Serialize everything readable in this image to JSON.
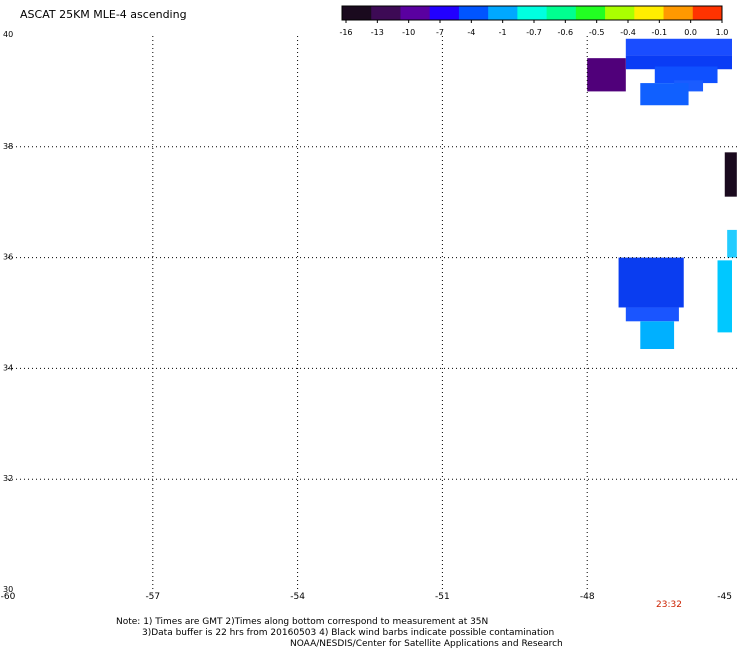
{
  "title": "ASCAT 25KM MLE-4 ascending",
  "colorbar": {
    "tick_labels": [
      "-16",
      "-13",
      "-10",
      "-7",
      "-4",
      "-1",
      "-0.7",
      "-0.6",
      "-0.5",
      "-0.4",
      "-0.1",
      "0.0",
      "1.0"
    ],
    "colors": [
      "#1a0a1e",
      "#3d0a55",
      "#5a00a0",
      "#2200ff",
      "#0055ff",
      "#00a8ff",
      "#00ffe0",
      "#00ff90",
      "#22ff22",
      "#aaff00",
      "#ffee00",
      "#ff9900",
      "#ff3300"
    ]
  },
  "map": {
    "lon_labels": [
      "-60",
      "-57",
      "-54",
      "-51",
      "-48",
      "-45"
    ],
    "lat_labels": [
      "40",
      "38",
      "36",
      "34",
      "32",
      "30"
    ],
    "lon_range": [
      -60,
      -45
    ],
    "lat_range": [
      30,
      40
    ],
    "grid": "dotted",
    "cells": [
      {
        "lon0": -47.2,
        "lon1": -45.0,
        "lat0": 39.65,
        "lat1": 39.95,
        "color": "#1a4dff"
      },
      {
        "lon0": -47.2,
        "lon1": -45.0,
        "lat0": 39.4,
        "lat1": 39.65,
        "color": "#0a3cf5"
      },
      {
        "lon0": -46.6,
        "lon1": -45.3,
        "lat0": 39.15,
        "lat1": 39.45,
        "color": "#0f50ff"
      },
      {
        "lon0": -46.2,
        "lon1": -45.6,
        "lat0": 39.0,
        "lat1": 39.2,
        "color": "#1a5cff"
      },
      {
        "lon0": -46.9,
        "lon1": -45.9,
        "lat0": 38.75,
        "lat1": 39.15,
        "color": "#1060ff"
      },
      {
        "lon0": -48.0,
        "lon1": -47.2,
        "lat0": 39.0,
        "lat1": 39.6,
        "color": "#50007a"
      },
      {
        "lon0": -45.15,
        "lon1": -44.9,
        "lat0": 37.1,
        "lat1": 37.9,
        "color": "#1a0a1e"
      },
      {
        "lon0": -47.35,
        "lon1": -46.0,
        "lat0": 35.1,
        "lat1": 36.0,
        "color": "#0a3df0"
      },
      {
        "lon0": -47.2,
        "lon1": -46.1,
        "lat0": 34.85,
        "lat1": 35.1,
        "color": "#1a55ff"
      },
      {
        "lon0": -46.9,
        "lon1": -46.2,
        "lat0": 34.35,
        "lat1": 34.85,
        "color": "#00b0ff"
      },
      {
        "lon0": -45.3,
        "lon1": -45.0,
        "lat0": 34.65,
        "lat1": 35.95,
        "color": "#00c8ff"
      },
      {
        "lon0": -45.1,
        "lon1": -44.9,
        "lat0": 36.0,
        "lat1": 36.5,
        "color": "#22ccff"
      }
    ]
  },
  "timestamp": "23:32",
  "notes": [
    "Note: 1) Times are GMT 2)Times along bottom correspond to measurement at 35N",
    "3)Data buffer is 22 hrs from 20160503 4) Black wind barbs indicate possible contamination",
    "NOAA/NESDIS/Center for Satellite Applications and Research"
  ]
}
